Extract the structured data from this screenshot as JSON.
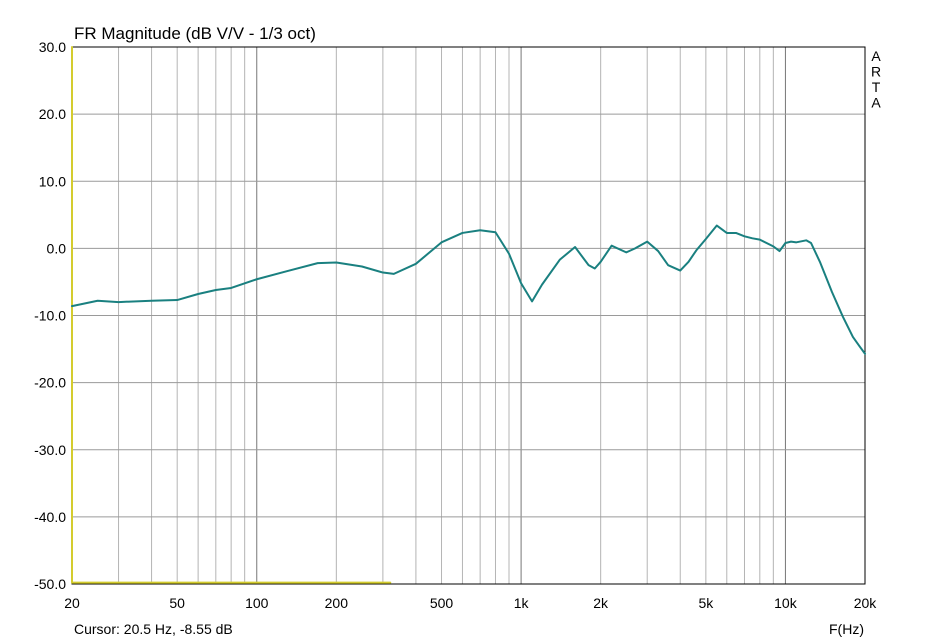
{
  "chart_data": {
    "type": "line",
    "title": "FR Magnitude (dB V/V - 1/3 oct)",
    "xlabel": "F(Hz)",
    "ylabel": "",
    "x_scale": "log",
    "xlim": [
      20,
      20000
    ],
    "ylim": [
      -50,
      30
    ],
    "grid": true,
    "x_tick_labels": [
      {
        "value": 20,
        "label": "20"
      },
      {
        "value": 50,
        "label": "50"
      },
      {
        "value": 100,
        "label": "100"
      },
      {
        "value": 200,
        "label": "200"
      },
      {
        "value": 500,
        "label": "500"
      },
      {
        "value": 1000,
        "label": "1k"
      },
      {
        "value": 2000,
        "label": "2k"
      },
      {
        "value": 5000,
        "label": "5k"
      },
      {
        "value": 10000,
        "label": "10k"
      },
      {
        "value": 20000,
        "label": "20k"
      }
    ],
    "y_tick_labels": [
      {
        "value": 30,
        "label": "30.0"
      },
      {
        "value": 20,
        "label": "20.0"
      },
      {
        "value": 10,
        "label": "10.0"
      },
      {
        "value": 0,
        "label": "0.0"
      },
      {
        "value": -10,
        "label": "-10.0"
      },
      {
        "value": -20,
        "label": "-20.0"
      },
      {
        "value": -30,
        "label": "-30.0"
      },
      {
        "value": -40,
        "label": "-40.0"
      },
      {
        "value": -50,
        "label": "-50.0"
      }
    ],
    "series": [
      {
        "color": "#1a8080",
        "x": [
          20,
          25,
          30,
          40,
          50,
          60,
          70,
          80,
          100,
          130,
          170,
          200,
          250,
          300,
          330,
          400,
          500,
          600,
          700,
          800,
          900,
          1000,
          1100,
          1200,
          1400,
          1600,
          1800,
          1900,
          2000,
          2200,
          2500,
          2700,
          3000,
          3300,
          3600,
          4000,
          4300,
          4600,
          5000,
          5500,
          6000,
          6500,
          7000,
          7500,
          8000,
          9000,
          9500,
          10000,
          10500,
          11000,
          12000,
          12500,
          13500,
          15000,
          16500,
          18000,
          19000,
          20000
        ],
        "y": [
          -8.6,
          -7.8,
          -8,
          -7.8,
          -7.7,
          -6.8,
          -6.2,
          -5.9,
          -4.6,
          -3.4,
          -2.2,
          -2.1,
          -2.7,
          -3.6,
          -3.8,
          -2.3,
          0.9,
          2.3,
          2.7,
          2.4,
          -0.8,
          -5.2,
          -7.9,
          -5.4,
          -1.7,
          0.2,
          -2.5,
          -3,
          -2,
          0.4,
          -0.6,
          0,
          1,
          -0.4,
          -2.5,
          -3.3,
          -2,
          -0.3,
          1.4,
          3.4,
          2.3,
          2.3,
          1.8,
          1.5,
          1.3,
          0.3,
          -0.4,
          0.8,
          1,
          0.9,
          1.2,
          0.8,
          -2,
          -6.5,
          -10.2,
          -13.2,
          -14.5,
          -15.7
        ]
      },
      {
        "color": "#d4cc2e",
        "x": [
          20,
          20,
          20.5,
          320
        ],
        "y": [
          31,
          -49.8,
          -49.8,
          -49.8
        ]
      }
    ],
    "annotations": {
      "brand": "ARTA",
      "cursor": "Cursor: 20.5 Hz, -8.55 dB"
    }
  }
}
